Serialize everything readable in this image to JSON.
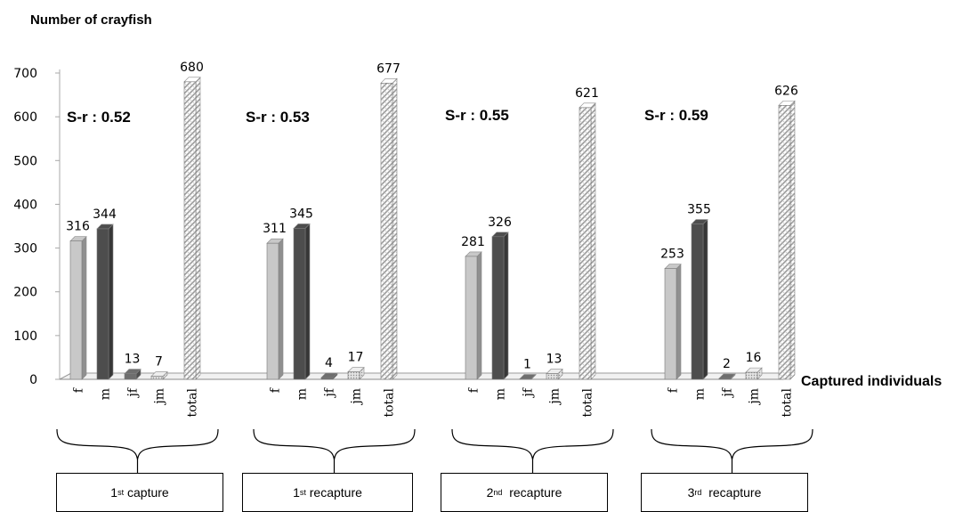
{
  "chart_data": {
    "type": "bar",
    "ylabel": "Number of  crayfish",
    "xlabel": "Captured individuals",
    "ylim": [
      0,
      700
    ],
    "yticks": [
      0,
      100,
      200,
      300,
      400,
      500,
      600,
      700
    ],
    "bar_categories": [
      "f",
      "m",
      "jf",
      "jm",
      "total"
    ],
    "bar_colors": {
      "f": "#c8c8c8",
      "m": "#4d4d4d",
      "jf": "#6e6e6e",
      "jm": "#d2d2d2",
      "total": "#ffffff"
    },
    "groups": [
      {
        "label_main": "1",
        "label_sup": "st",
        "label_rest": " capture",
        "sr": "S-r : 0.52",
        "values": [
          316,
          344,
          13,
          7,
          680
        ]
      },
      {
        "label_main": "1",
        "label_sup": "st",
        "label_rest": " recapture",
        "sr": "S-r : 0.53",
        "values": [
          311,
          345,
          4,
          17,
          677
        ]
      },
      {
        "label_main": "2",
        "label_sup": "nd",
        "label_rest": "  recapture",
        "sr": "S-r : 0.55",
        "values": [
          281,
          326,
          1,
          13,
          621
        ]
      },
      {
        "label_main": "3",
        "label_sup": "rd",
        "label_rest": "  recapture",
        "sr": "S-r : 0.59",
        "values": [
          253,
          355,
          2,
          16,
          626
        ]
      }
    ]
  }
}
